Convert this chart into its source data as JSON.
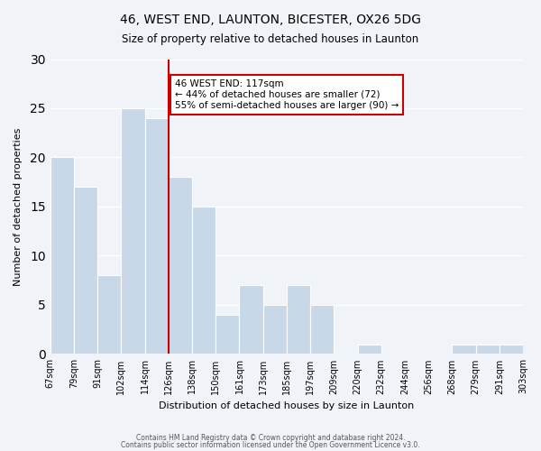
{
  "title": "46, WEST END, LAUNTON, BICESTER, OX26 5DG",
  "subtitle": "Size of property relative to detached houses in Launton",
  "xlabel": "Distribution of detached houses by size in Launton",
  "ylabel": "Number of detached properties",
  "bar_color": "#c8d8e8",
  "tick_labels": [
    "67sqm",
    "79sqm",
    "91sqm",
    "102sqm",
    "114sqm",
    "126sqm",
    "138sqm",
    "150sqm",
    "161sqm",
    "173sqm",
    "185sqm",
    "197sqm",
    "209sqm",
    "220sqm",
    "232sqm",
    "244sqm",
    "256sqm",
    "268sqm",
    "279sqm",
    "291sqm",
    "303sqm"
  ],
  "values": [
    20,
    17,
    8,
    25,
    24,
    18,
    15,
    4,
    7,
    5,
    7,
    5,
    0,
    1,
    0,
    0,
    0,
    1,
    1,
    1
  ],
  "vline_x": 4.5,
  "vline_color": "#cc0000",
  "annotation_title": "46 WEST END: 117sqm",
  "annotation_line1": "← 44% of detached houses are smaller (72)",
  "annotation_line2": "55% of semi-detached houses are larger (90) →",
  "annotation_box_color": "#ffffff",
  "annotation_box_edge": "#cc0000",
  "ylim": [
    0,
    30
  ],
  "yticks": [
    0,
    5,
    10,
    15,
    20,
    25,
    30
  ],
  "footer1": "Contains HM Land Registry data © Crown copyright and database right 2024.",
  "footer2": "Contains public sector information licensed under the Open Government Licence v3.0.",
  "background_color": "#f0f4f8",
  "grid_color": "#ffffff"
}
